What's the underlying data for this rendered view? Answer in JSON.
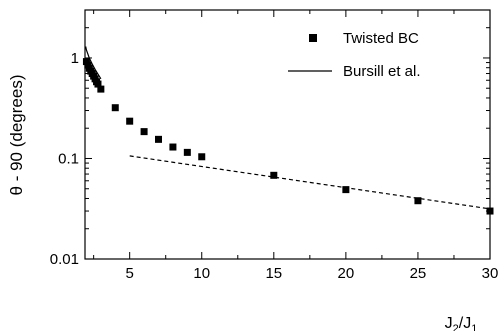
{
  "chart_data": {
    "type": "scatter",
    "title": "",
    "xlabel": "J2/J1",
    "xlabel_main": "J",
    "xlabel_sub_a": "2",
    "xlabel_slash": "/J",
    "xlabel_sub_b": "1",
    "ylabel": "θ - 90 (degrees)",
    "xlim": [
      1.9,
      30
    ],
    "ylim": [
      0.01,
      3.0
    ],
    "yscale": "log",
    "grid": false,
    "legend_position": "top-right",
    "x_ticks": [
      {
        "value": 5,
        "label": "5"
      },
      {
        "value": 10,
        "label": "10"
      },
      {
        "value": 15,
        "label": "15"
      },
      {
        "value": 20,
        "label": "20"
      },
      {
        "value": 25,
        "label": "25"
      },
      {
        "value": 30,
        "label": "30"
      }
    ],
    "y_ticks": [
      {
        "value": 0.01,
        "label": "0.01"
      },
      {
        "value": 0.1,
        "label": "0.1"
      },
      {
        "value": 1,
        "label": "1"
      }
    ],
    "series": [
      {
        "name": "Twisted BC",
        "style": "square-markers",
        "points": [
          [
            2.0,
            0.92
          ],
          [
            2.1,
            0.85
          ],
          [
            2.2,
            0.79
          ],
          [
            2.3,
            0.74
          ],
          [
            2.4,
            0.7
          ],
          [
            2.5,
            0.66
          ],
          [
            2.6,
            0.62
          ],
          [
            2.7,
            0.58
          ],
          [
            2.8,
            0.55
          ],
          [
            3.0,
            0.49
          ],
          [
            4,
            0.32
          ],
          [
            5,
            0.235
          ],
          [
            6,
            0.185
          ],
          [
            7,
            0.155
          ],
          [
            8,
            0.13
          ],
          [
            9,
            0.115
          ],
          [
            10,
            0.104
          ],
          [
            15,
            0.068
          ],
          [
            20,
            0.049
          ],
          [
            25,
            0.038
          ],
          [
            30,
            0.03
          ]
        ]
      },
      {
        "name": "Bursill et al.",
        "style": "solid-line",
        "points": [
          [
            1.95,
            1.3
          ],
          [
            2.0,
            1.2
          ],
          [
            2.2,
            1.0
          ],
          [
            2.4,
            0.87
          ],
          [
            2.6,
            0.77
          ],
          [
            2.8,
            0.69
          ],
          [
            3.0,
            0.62
          ]
        ]
      },
      {
        "name": "",
        "style": "dashed-line",
        "points": [
          [
            5,
            0.106
          ],
          [
            30,
            0.0315
          ]
        ]
      }
    ],
    "legend": [
      {
        "label": "Twisted BC",
        "symbol": "square"
      },
      {
        "label": "Bursill et al.",
        "symbol": "line"
      }
    ]
  }
}
